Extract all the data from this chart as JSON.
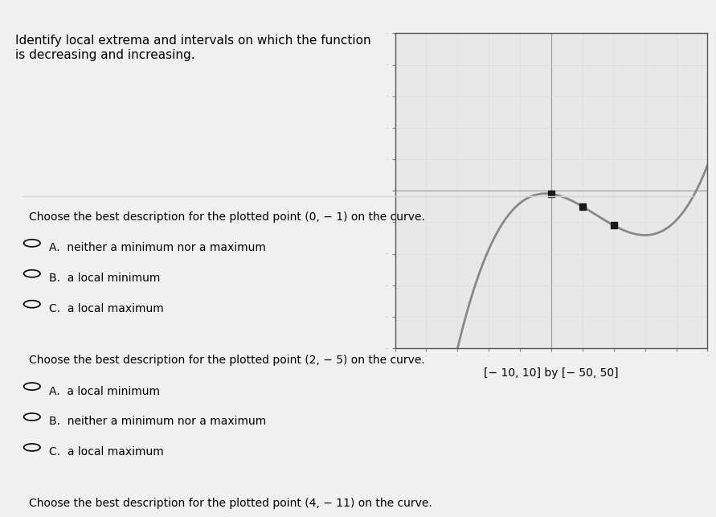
{
  "title_text": "Identify local extrema and intervals on which the function\nis decreasing and increasing.",
  "graph_window_label": "[− 10, 10] by [− 50, 50]",
  "xlim": [
    -10,
    10
  ],
  "ylim": [
    -50,
    50
  ],
  "plotted_points": [
    [
      0,
      -1
    ],
    [
      2,
      -5
    ],
    [
      4,
      -11
    ]
  ],
  "question1": "Choose the best description for the plotted point (0, − 1) on the curve.",
  "q1_options": [
    "A.  neither a minimum nor a maximum",
    "B.  a local minimum",
    "C.  a local maximum"
  ],
  "question2": "Choose the best description for the plotted point (2, − 5) on the curve.",
  "q2_options": [
    "A.  a local minimum",
    "B.  neither a minimum nor a maximum",
    "C.  a local maximum"
  ],
  "question3": "Choose the best description for the plotted point (4, − 11) on the curve.",
  "curve_color": "#888888",
  "point_color": "#1a1a1a",
  "bg_color": "#f0f0f0",
  "panel_bg": "#ffffff",
  "graph_bg": "#e8e8e8",
  "tick_interval_x": 2,
  "tick_interval_y": 10
}
